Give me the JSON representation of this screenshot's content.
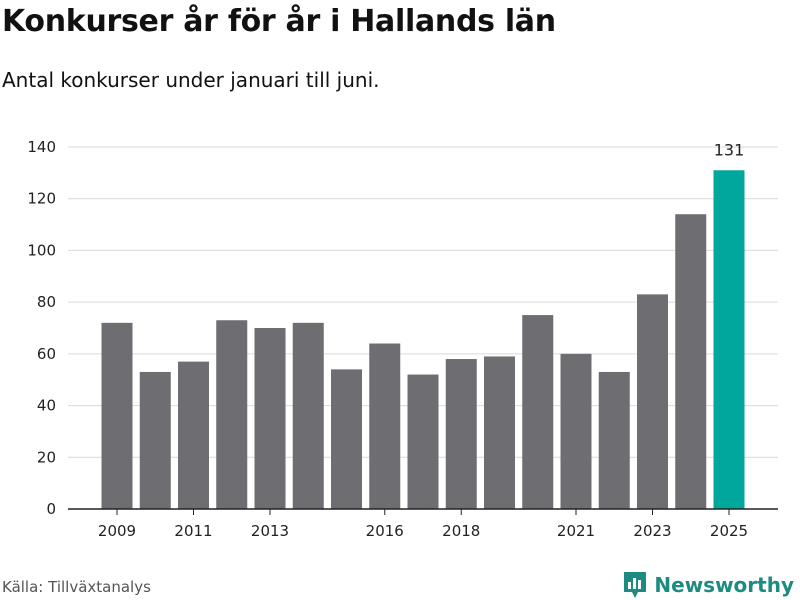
{
  "title": "Konkurser år för år i Hallands län",
  "subtitle": "Antal konkurser under januari till juni.",
  "source": "Källa: Tillväxtanalys",
  "brand": {
    "name": "Newsworthy",
    "icon": "newsworthy-logo-icon",
    "color": "#1e8b82"
  },
  "chart_data": {
    "type": "bar",
    "categories": [
      "2009",
      "2010",
      "2011",
      "2012",
      "2013",
      "2014",
      "2015",
      "2016",
      "2017",
      "2018",
      "2019",
      "2020",
      "2021",
      "2022",
      "2023",
      "2024",
      "2025"
    ],
    "values": [
      72,
      53,
      57,
      73,
      70,
      72,
      54,
      64,
      52,
      58,
      59,
      75,
      60,
      53,
      83,
      114,
      131
    ],
    "x_tick_labels": [
      "2009",
      "2011",
      "2013",
      "2016",
      "2018",
      "2021",
      "2023",
      "2025"
    ],
    "y_ticks": [
      0,
      20,
      40,
      60,
      80,
      100,
      120,
      140
    ],
    "ylim": [
      0,
      140
    ],
    "grid": true,
    "bar_color": "#6d6d72",
    "highlight_color": "#00a79a",
    "highlight_category": "2025",
    "annotations": [
      {
        "category": "2025",
        "text": "131"
      }
    ],
    "title": "Konkurser år för år i Hallands län",
    "xlabel": "",
    "ylabel": ""
  }
}
